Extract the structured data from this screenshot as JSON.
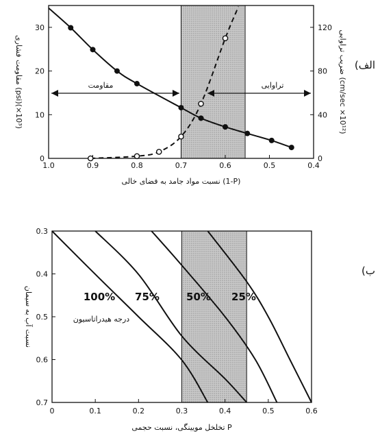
{
  "chart_data": [
    {
      "panel_label": "(الف",
      "type": "line",
      "xlabel": "نسبت مواد جامد به فضای خالی (1-P)",
      "ylabel_left": "مقاومت فشاری (psi)(×10³)",
      "ylabel_right": "ضریب تراوایی (cm/sec ×10¹²)",
      "xlim": [
        1.0,
        0.4
      ],
      "ylim_left": [
        0,
        35
      ],
      "ylim_right": [
        0,
        140
      ],
      "x_ticks": [
        "1.0",
        "0.9",
        "0.8",
        "0.7",
        "0.6",
        "0.5",
        "0.4"
      ],
      "y_ticks_left": [
        "0",
        "10",
        "20",
        "30"
      ],
      "y_ticks_right": [
        "0",
        "40",
        "80",
        "120"
      ],
      "shaded_region": [
        0.7,
        0.555
      ],
      "annotations": {
        "strength": "مقاومت",
        "permeability": "تراوایی"
      },
      "series": [
        {
          "name": "مقاومت",
          "axis": "left",
          "style": "solid-filled-markers",
          "x": [
            0.95,
            0.9,
            0.845,
            0.8,
            0.7,
            0.655,
            0.6,
            0.55,
            0.495,
            0.45
          ],
          "y": [
            29.9,
            24.9,
            20.0,
            17.1,
            11.6,
            9.2,
            7.2,
            5.7,
            4.1,
            2.5
          ]
        },
        {
          "name": "تراوایی",
          "axis": "right",
          "style": "dashed-open-markers",
          "x": [
            0.905,
            0.8,
            0.75,
            0.7,
            0.655,
            0.6
          ],
          "y": [
            0,
            2,
            6,
            20,
            50,
            110
          ]
        }
      ]
    },
    {
      "panel_label": "(ب",
      "type": "line",
      "xlabel": "تخلخل مویینگی، نسبت حجمی P",
      "ylabel": "نسبت آب به سیمان",
      "xlim": [
        0,
        0.6
      ],
      "ylim": [
        0.3,
        0.7
      ],
      "y_inverted": true,
      "x_ticks": [
        "0",
        "0.1",
        "0.2",
        "0.3",
        "0.4",
        "0.5",
        "0.6"
      ],
      "y_ticks": [
        "0.3",
        "0.4",
        "0.5",
        "0.6",
        "0.7"
      ],
      "shaded_region": [
        0.3,
        0.45
      ],
      "series_title": "درجه هیدراتاسیون",
      "series": [
        {
          "name": "100%",
          "x": [
            0.0,
            0.1,
            0.2,
            0.3,
            0.36
          ],
          "y": [
            0.3,
            0.401,
            0.5,
            0.601,
            0.7
          ]
        },
        {
          "name": "75%",
          "x": [
            0.1,
            0.2,
            0.3,
            0.4,
            0.45
          ],
          "y": [
            0.3,
            0.401,
            0.545,
            0.645,
            0.7
          ]
        },
        {
          "name": "50%",
          "x": [
            0.23,
            0.3,
            0.4,
            0.47,
            0.52
          ],
          "y": [
            0.3,
            0.38,
            0.5,
            0.6,
            0.7
          ]
        },
        {
          "name": "25%",
          "x": [
            0.36,
            0.45,
            0.5,
            0.55,
            0.6
          ],
          "y": [
            0.3,
            0.418,
            0.5,
            0.6,
            0.7
          ]
        }
      ]
    }
  ]
}
